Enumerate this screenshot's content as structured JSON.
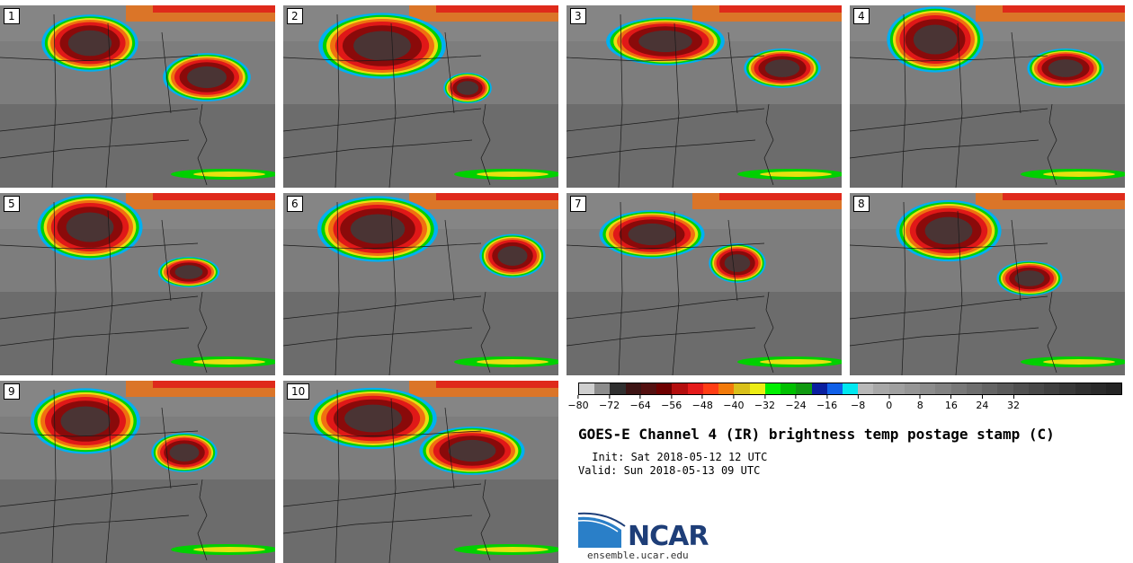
{
  "panels": [
    {
      "label": "1"
    },
    {
      "label": "2"
    },
    {
      "label": "3"
    },
    {
      "label": "4"
    },
    {
      "label": "5"
    },
    {
      "label": "6"
    },
    {
      "label": "7"
    },
    {
      "label": "8"
    },
    {
      "label": "9"
    },
    {
      "label": "10"
    }
  ],
  "colorbar": {
    "colors": [
      "#cfcfcf",
      "#8c8c8c",
      "#303030",
      "#3d1414",
      "#541010",
      "#6e0000",
      "#b40e0e",
      "#e51b1b",
      "#ff3d14",
      "#f27a0a",
      "#d9c01a",
      "#eded14",
      "#00f000",
      "#00c000",
      "#109a10",
      "#0a1fa0",
      "#1060e8",
      "#00e8f0",
      "#b8b8b8",
      "#a8a8a8",
      "#a0a0a0",
      "#969696",
      "#8c8c8c",
      "#828282",
      "#787878",
      "#6e6e6e",
      "#646464",
      "#5a5a5a",
      "#505050",
      "#484848",
      "#404040",
      "#383838",
      "#303030",
      "#2a2a2a",
      "#242424"
    ],
    "ticks": [
      "−80",
      "−72",
      "−64",
      "−56",
      "−48",
      "−40",
      "−32",
      "−24",
      "−16",
      "−8",
      "0",
      "8",
      "16",
      "24",
      "32"
    ]
  },
  "title": "GOES-E Channel 4 (IR) brightness temp postage stamp (C)",
  "init": " Init: Sat 2018-05-12 12 UTC",
  "valid": "Valid: Sun 2018-05-13 09 UTC",
  "logo": {
    "text": "NCAR",
    "brand_color": "#1e3e78",
    "accent_color": "#2a7fc8"
  },
  "site": "ensemble.ucar.edu"
}
